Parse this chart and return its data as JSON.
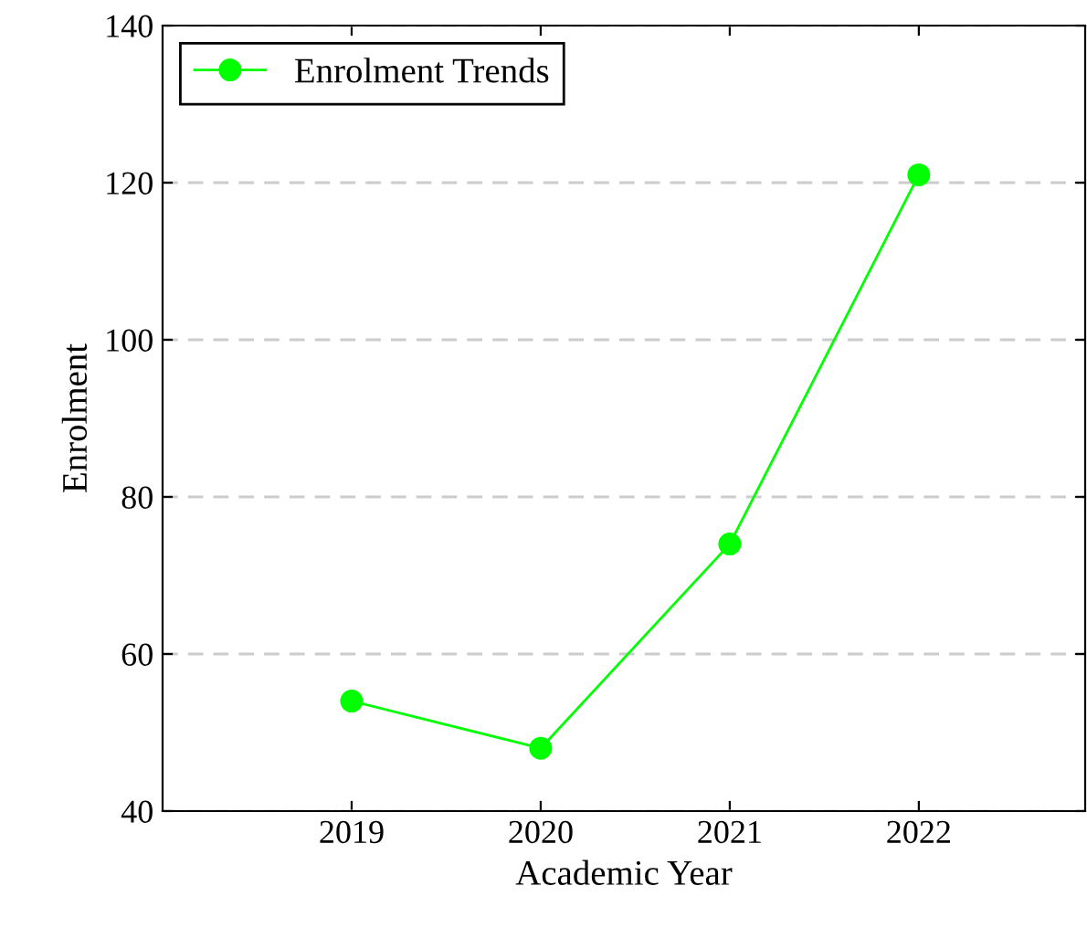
{
  "chart_data": {
    "type": "line",
    "xlabel": "Academic Year",
    "ylabel": "Enrolment",
    "x": [
      2019,
      2020,
      2021,
      2022
    ],
    "series": [
      {
        "name": "Enrolment Trends",
        "color": "#00ff00",
        "values": [
          54,
          48,
          74,
          121
        ]
      }
    ],
    "xlim": [
      2018.0,
      2022.88
    ],
    "xticks": [
      2019,
      2020,
      2021,
      2022
    ],
    "ylim": [
      40,
      140
    ],
    "yticks": [
      40,
      60,
      80,
      100,
      120,
      140
    ],
    "grid": "y",
    "legend": "top left",
    "marker": "circle",
    "line_style": "solid"
  }
}
